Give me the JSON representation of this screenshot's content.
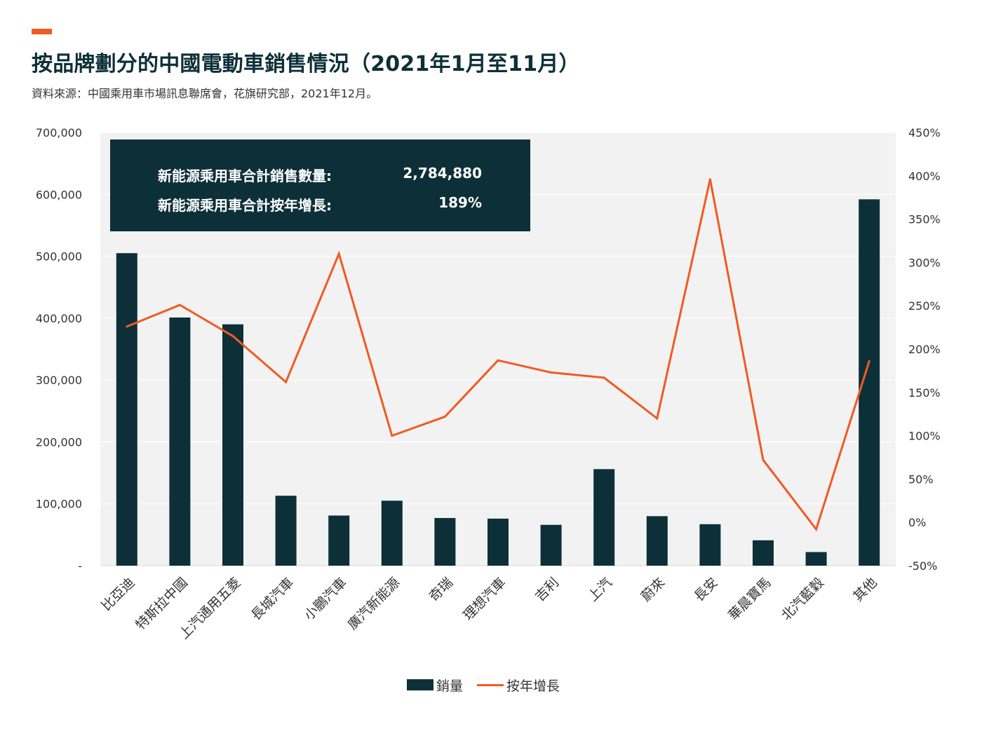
{
  "title": "按品牌劃分的中國電動車銷售情況（2021年1月至11月）",
  "subtitle": "資料來源：中國乘用車市場訊息聯席會，花旗研究部，2021年12月。",
  "summary": {
    "total_label": "新能源乘用車合計銷售數量:",
    "total_value": "2,784,880",
    "growth_label": "新能源乘用車合計按年增長:",
    "growth_value": "189%"
  },
  "legend": {
    "bar_label": "銷量",
    "line_label": "按年增長"
  },
  "colors": {
    "bar": "#0d3038",
    "line": "#f15a22",
    "plot_background": "#f2f2f2"
  },
  "chart_data": {
    "type": "bar",
    "categories": [
      "比亞迪",
      "特斯拉中國",
      "上汽通用五菱",
      "長城汽車",
      "小鵬汽車",
      "廣汽新能源",
      "奇瑞",
      "理想汽車",
      "吉利",
      "上汽",
      "蔚來",
      "長安",
      "華晨寶馬",
      "北汽藍穀",
      "其他"
    ],
    "series": [
      {
        "name": "銷量",
        "type": "bar",
        "axis": "left",
        "values": [
          505000,
          401000,
          390000,
          113000,
          81000,
          105000,
          77000,
          76000,
          66000,
          156000,
          80000,
          67000,
          41000,
          22000,
          592000
        ]
      },
      {
        "name": "按年增長",
        "type": "line",
        "axis": "right",
        "values": [
          226,
          251,
          215,
          162,
          310,
          100,
          122,
          187,
          173,
          167,
          120,
          396,
          72,
          -8,
          186
        ]
      }
    ],
    "y_left": {
      "ylim": [
        0,
        700000
      ],
      "ticks": [
        0,
        100000,
        200000,
        300000,
        400000,
        500000,
        600000,
        700000
      ],
      "tick_labels": [
        "-",
        "100,000",
        "200,000",
        "300,000",
        "400,000",
        "500,000",
        "600,000",
        "700,000"
      ]
    },
    "y_right": {
      "ylim": [
        -50,
        450
      ],
      "ticks": [
        -50,
        0,
        50,
        100,
        150,
        200,
        250,
        300,
        350,
        400,
        450
      ],
      "tick_labels": [
        "-50%",
        "0%",
        "50%",
        "100%",
        "150%",
        "200%",
        "250%",
        "300%",
        "350%",
        "400%",
        "450%"
      ]
    },
    "grid": true,
    "legend_position": "bottom"
  }
}
